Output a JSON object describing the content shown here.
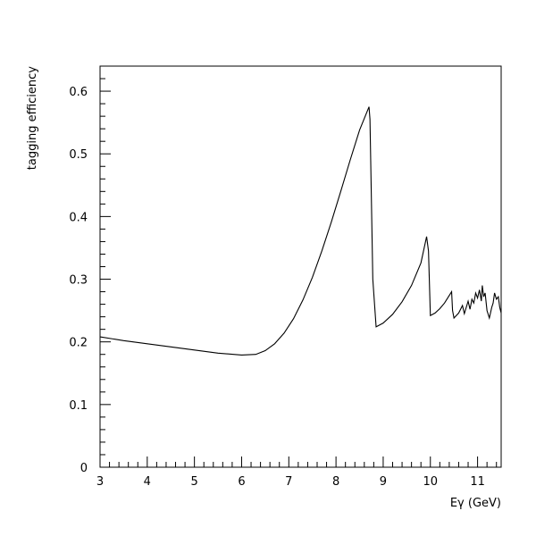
{
  "chart_data": {
    "type": "line",
    "title": "",
    "xlabel": "Eγ (GeV)",
    "ylabel": "tagging efficiency",
    "xlim": [
      3,
      11.5
    ],
    "ylim": [
      0,
      0.64
    ],
    "grid": false,
    "x_ticks": [
      3,
      4,
      5,
      6,
      7,
      8,
      9,
      10,
      11
    ],
    "x_tick_labels": [
      "3",
      "4",
      "5",
      "6",
      "7",
      "8",
      "9",
      "10",
      "11"
    ],
    "y_ticks": [
      0,
      0.1,
      0.2,
      0.3,
      0.4,
      0.5,
      0.6
    ],
    "y_tick_labels": [
      "0",
      "0.1",
      "0.2",
      "0.3",
      "0.4",
      "0.5",
      "0.6"
    ],
    "series": [
      {
        "x": [
          3.0,
          3.5,
          4.0,
          4.5,
          5.0,
          5.5,
          6.0,
          6.3,
          6.5,
          6.7,
          6.9,
          7.1,
          7.3,
          7.5,
          7.7,
          7.9,
          8.1,
          8.3,
          8.5,
          8.7,
          8.72,
          8.78,
          8.85,
          9.0,
          9.2,
          9.4,
          9.6,
          9.8,
          9.92,
          9.96,
          10.0,
          10.1,
          10.2,
          10.3,
          10.45,
          10.47,
          10.5,
          10.6,
          10.68,
          10.72,
          10.76,
          10.8,
          10.84,
          10.88,
          10.92,
          10.96,
          11.0,
          11.04,
          11.08,
          11.1,
          11.13,
          11.16,
          11.2,
          11.25,
          11.3,
          11.33,
          11.36,
          11.4,
          11.44,
          11.47,
          11.5
        ],
        "y": [
          0.208,
          0.202,
          0.197,
          0.192,
          0.187,
          0.182,
          0.179,
          0.18,
          0.186,
          0.197,
          0.214,
          0.237,
          0.267,
          0.303,
          0.345,
          0.391,
          0.44,
          0.49,
          0.538,
          0.575,
          0.555,
          0.3,
          0.224,
          0.23,
          0.244,
          0.264,
          0.29,
          0.326,
          0.368,
          0.345,
          0.242,
          0.246,
          0.253,
          0.262,
          0.28,
          0.25,
          0.238,
          0.246,
          0.258,
          0.245,
          0.255,
          0.265,
          0.252,
          0.268,
          0.262,
          0.278,
          0.27,
          0.283,
          0.265,
          0.29,
          0.272,
          0.278,
          0.25,
          0.238,
          0.255,
          0.262,
          0.278,
          0.268,
          0.272,
          0.255,
          0.246
        ]
      }
    ]
  }
}
